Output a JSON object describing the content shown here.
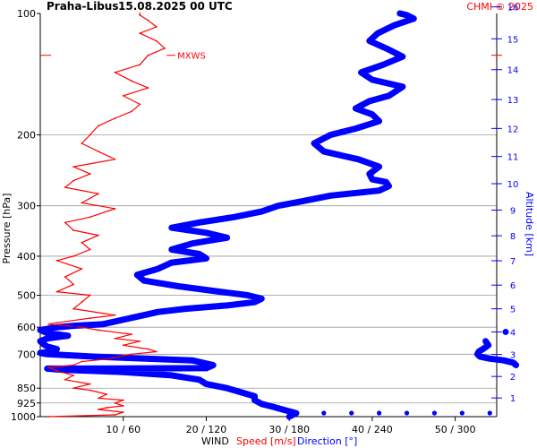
{
  "header": {
    "station": "Praha-Libus",
    "datetime": "15.08.2025 00 UTC",
    "copyright": "CHMI © 2025"
  },
  "chart_data": {
    "type": "line",
    "title": "Praha-Libus 15.08.2025 00 UTC",
    "ylabel": "Pressure [hPa]",
    "y2label": "Altitude [km]",
    "xlabel_parts": {
      "wind": "WIND",
      "speed": "Speed [m/s]",
      "direction": "Direction [°]"
    },
    "pressure_ticks": [
      "100",
      "200",
      "300",
      "400",
      "500",
      "600",
      "700",
      "850",
      "925",
      "1000"
    ],
    "pressure_values": [
      100,
      200,
      300,
      400,
      500,
      600,
      700,
      850,
      925,
      1000
    ],
    "altitude_ticks_km": [
      1,
      2,
      3,
      4,
      5,
      6,
      7,
      8,
      9,
      10,
      11,
      12,
      13,
      14,
      15,
      16
    ],
    "x_ticks": [
      "10 / 60",
      "20 / 120",
      "30 / 180",
      "40 / 240",
      "50 / 300"
    ],
    "speed_range": [
      0,
      55
    ],
    "direction_range": [
      0,
      330
    ],
    "mxws_label": "MXWS",
    "mxws_pressure": 127,
    "colors": {
      "speed": "#ff0000",
      "direction": "#0000ff",
      "grid": "#999999",
      "axis": "#000000"
    },
    "series": [
      {
        "name": "Speed [m/s]",
        "pressure": [
          1000,
          990,
          975,
          960,
          950,
          940,
          925,
          910,
          900,
          880,
          860,
          850,
          830,
          810,
          790,
          770,
          755,
          745,
          730,
          720,
          700,
          690,
          680,
          665,
          650,
          640,
          625,
          610,
          600,
          590,
          585,
          570,
          560,
          540,
          520,
          500,
          490,
          470,
          450,
          430,
          410,
          400,
          385,
          370,
          355,
          345,
          330,
          320,
          305,
          295,
          280,
          270,
          260,
          250,
          240,
          230,
          220,
          210,
          200,
          190,
          182,
          175,
          168,
          160,
          153,
          147,
          140,
          134,
          127,
          122,
          117,
          112,
          108,
          104,
          101,
          100
        ],
        "values": [
          1,
          9,
          10,
          7,
          8,
          10,
          9,
          10,
          7,
          8,
          6,
          4,
          6,
          3,
          4,
          2,
          1,
          4,
          5,
          8,
          11,
          14,
          13,
          10,
          12,
          9,
          11,
          7,
          5,
          1,
          2,
          6,
          9,
          4,
          5,
          6,
          2,
          4,
          3,
          5,
          2,
          4,
          6,
          5,
          7,
          4,
          3,
          6,
          9,
          5,
          7,
          3,
          4,
          6,
          4,
          9,
          7,
          5,
          6,
          7,
          9,
          11,
          12,
          10,
          13,
          11,
          9,
          12,
          13,
          15,
          14,
          12,
          14,
          13,
          12,
          12
        ]
      },
      {
        "name": "Direction [°]",
        "pressure": [
          1000,
          980,
          960,
          945,
          930,
          910,
          890,
          870,
          850,
          830,
          810,
          790,
          775,
          765,
          760,
          758,
          745,
          725,
          710,
          700,
          695,
          690,
          680,
          670,
          660,
          650,
          640,
          630,
          620,
          610,
          600,
          595,
          590,
          580,
          570,
          560,
          550,
          540,
          530,
          520,
          510,
          500,
          490,
          475,
          460,
          445,
          430,
          415,
          405,
          395,
          385,
          372,
          360,
          350,
          340,
          330,
          320,
          310,
          300,
          292,
          283,
          275,
          268,
          262,
          258,
          250,
          240,
          230,
          220,
          210,
          200,
          193,
          185,
          178,
          172,
          165,
          160,
          152,
          146,
          140,
          134,
          128,
          122,
          117,
          112,
          107,
          103,
          101,
          100
        ],
        "values": [
          180,
          185,
          175,
          168,
          160,
          155,
          155,
          145,
          135,
          120,
          115,
          95,
          60,
          15,
          5,
          120,
          125,
          110,
          40,
          5,
          0,
          10,
          12,
          5,
          2,
          0,
          5,
          20,
          5,
          0,
          12,
          25,
          45,
          55,
          65,
          75,
          85,
          105,
          135,
          155,
          160,
          150,
          130,
          100,
          75,
          70,
          85,
          95,
          120,
          115,
          95,
          110,
          135,
          120,
          95,
          115,
          140,
          160,
          172,
          190,
          210,
          245,
          252,
          250,
          240,
          238,
          245,
          230,
          205,
          198,
          210,
          228,
          245,
          240,
          228,
          238,
          252,
          262,
          240,
          232,
          248,
          262,
          250,
          238,
          244,
          256,
          270,
          265,
          260
        ]
      },
      {
        "name": "Direction [°] (upper levels)",
        "pressure": [
          650,
          665,
          680,
          690,
          700,
          710,
          718,
          725,
          735,
          745
        ],
        "values": [
          322,
          324,
          320,
          317,
          316,
          318,
          325,
          335,
          342,
          344
        ]
      }
    ],
    "surface_markers": {
      "pressure": 1000,
      "direction_values": [
        185,
        205,
        225,
        245,
        265,
        285,
        305,
        325
      ]
    },
    "altitude_marker_km": 4
  }
}
